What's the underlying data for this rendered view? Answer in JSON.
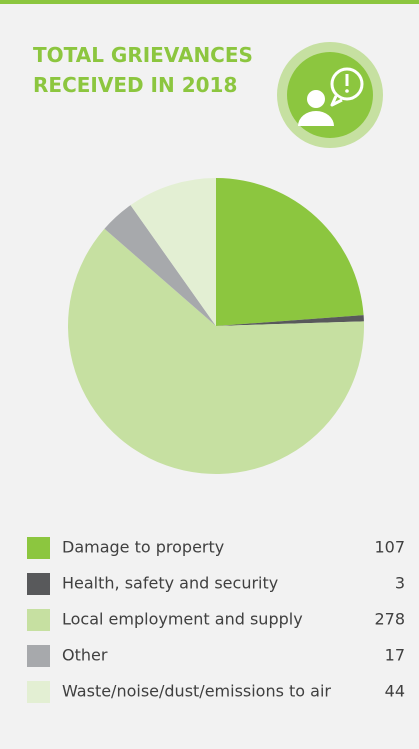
{
  "chart_data": {
    "type": "pie",
    "title": [
      "TOTAL GRIEVANCES",
      "RECEIVED IN 2018"
    ],
    "categories": [
      "Damage to property",
      "Health, safety and security",
      "Local employment and supply",
      "Other",
      "Waste/noise/dust/emissions to air"
    ],
    "values": [
      107,
      3,
      278,
      17,
      44
    ],
    "colors": [
      "#8cc63f",
      "#58595b",
      "#c6e0a1",
      "#a7a9ac",
      "#e3efd3"
    ],
    "start_angle": 0,
    "direction": "clockwise",
    "legend": "bottom"
  }
}
